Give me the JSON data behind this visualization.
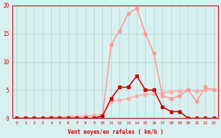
{
  "x": [
    0,
    1,
    2,
    3,
    4,
    5,
    6,
    7,
    8,
    9,
    10,
    11,
    12,
    13,
    14,
    15,
    16,
    17,
    18,
    19,
    20,
    21,
    22,
    23
  ],
  "line1_y": [
    0,
    0,
    0,
    0,
    0,
    0,
    0,
    0,
    0,
    0,
    0.4,
    3.5,
    5.5,
    5.5,
    7.5,
    5,
    5,
    2,
    1.2,
    1.2,
    0,
    0,
    0,
    0
  ],
  "line2_y": [
    0,
    0,
    0,
    0,
    0,
    0,
    0,
    0,
    0,
    0,
    0.5,
    13,
    15.5,
    18.5,
    19.5,
    15,
    11.5,
    4,
    3.5,
    4,
    5,
    3,
    5.5,
    5
  ],
  "line3_y": [
    0,
    0,
    0.1,
    0.1,
    0.15,
    0.2,
    0.25,
    0.3,
    0.4,
    0.5,
    0.6,
    3,
    3.2,
    3.5,
    4,
    4.2,
    4.3,
    4.5,
    4.7,
    4.8,
    5,
    4.8,
    5,
    5
  ],
  "bg_color": "#d8f0f0",
  "line1_color": "#cc0000",
  "line2_color": "#ff9999",
  "line3_color": "#ffaaaa",
  "xlabel": "Vent moyen/en rafales ( km/h )",
  "ylim": [
    0,
    20
  ],
  "xlim": [
    0,
    23
  ],
  "yticks": [
    0,
    5,
    10,
    15,
    20
  ],
  "xticks": [
    0,
    1,
    2,
    3,
    4,
    5,
    6,
    7,
    8,
    9,
    10,
    11,
    12,
    13,
    14,
    15,
    16,
    17,
    18,
    19,
    20,
    21,
    22,
    23
  ]
}
